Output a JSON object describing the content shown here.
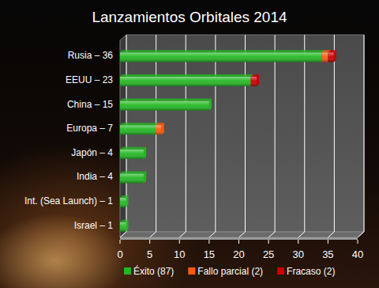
{
  "chart_data": {
    "type": "bar",
    "title": "Lanzamientos Orbitales 2014",
    "orientation": "horizontal",
    "stacked": true,
    "grid": true,
    "legend": "bottom",
    "categories": [
      "Rusia – 36",
      "EEUU – 23",
      "China – 15",
      "Europa – 7",
      "Japón – 4",
      "India – 4",
      "Int. (Sea Launch) – 1",
      "Israel – 1"
    ],
    "series": [
      {
        "name": "Éxito (87)",
        "color": "#22b822",
        "values": [
          34,
          22,
          15,
          6,
          4,
          4,
          1,
          1
        ]
      },
      {
        "name": "Fallo parcial (2)",
        "color": "#ff5a10",
        "values": [
          1,
          0,
          0,
          1,
          0,
          0,
          0,
          0
        ]
      },
      {
        "name": "Fracaso (2)",
        "color": "#c80000",
        "values": [
          1,
          1,
          0,
          0,
          0,
          0,
          0,
          0
        ]
      }
    ],
    "xlim": [
      0,
      40
    ],
    "xticks": [
      0,
      5,
      10,
      15,
      20,
      25,
      30,
      35,
      40
    ]
  }
}
